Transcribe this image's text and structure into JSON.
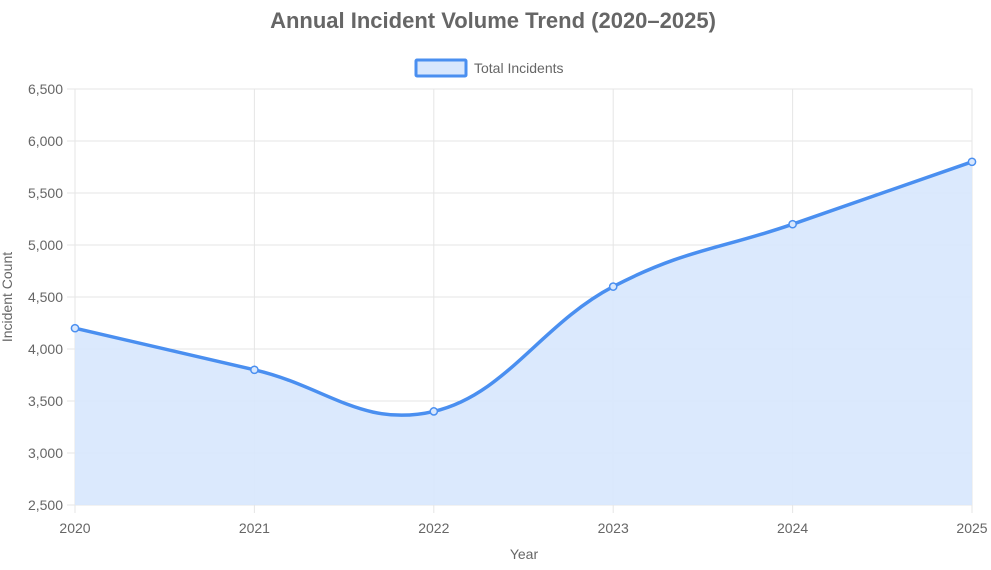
{
  "chart_data": {
    "type": "line",
    "title": "Annual Incident Volume Trend (2020–2025)",
    "xlabel": "Year",
    "ylabel": "Incident Count",
    "categories": [
      "2020",
      "2021",
      "2022",
      "2023",
      "2024",
      "2025"
    ],
    "series": [
      {
        "name": "Total Incidents",
        "values": [
          4200,
          3800,
          3400,
          4600,
          5200,
          5800
        ],
        "line_color": "#4a8ff0",
        "fill_color": "#d8e7fd"
      }
    ],
    "ylim": [
      2500,
      6500
    ],
    "yticks": [
      "2,500",
      "3,000",
      "3,500",
      "4,000",
      "4,500",
      "5,000",
      "5,500",
      "6,000",
      "6,500"
    ],
    "grid": true,
    "legend": "top-center",
    "area_fill": true,
    "smooth": true
  }
}
